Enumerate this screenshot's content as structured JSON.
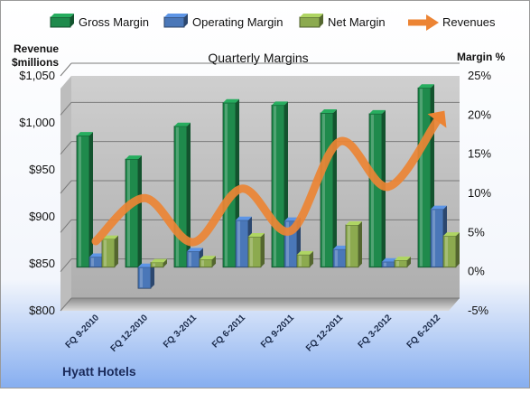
{
  "chart_data": {
    "type": "bar",
    "title": "Quarterly Margins",
    "company": "Hyatt Hotels",
    "left_axis_label": [
      "Revenue",
      "$millions"
    ],
    "right_axis_label": "Margin %",
    "left_ticks": [
      "$800",
      "$850",
      "$900",
      "$950",
      "$1,000",
      "$1,050"
    ],
    "right_ticks": [
      "-5%",
      "0%",
      "5%",
      "10%",
      "15%",
      "20%",
      "25%"
    ],
    "left_axis": {
      "min": 800,
      "max": 1050,
      "step": 50
    },
    "right_axis": {
      "min": -5,
      "max": 25,
      "step": 5
    },
    "grid": true,
    "legend_position": "top",
    "categories": [
      "FQ 9-2010",
      "FQ 12-2010",
      "FQ 3-2011",
      "FQ 6-2011",
      "FQ 9-2011",
      "FQ 12-2011",
      "FQ 3-2012",
      "FQ 6-2012"
    ],
    "series": [
      {
        "name": "Gross Margin",
        "type": "bar",
        "axis": "right",
        "color": "#1f8a4c",
        "values": [
          16.8,
          13.8,
          18.0,
          21.0,
          20.7,
          19.7,
          19.6,
          22.9
        ]
      },
      {
        "name": "Operating Margin",
        "type": "bar",
        "axis": "right",
        "color": "#4a77b8",
        "values": [
          1.3,
          -2.7,
          2.0,
          6.0,
          5.9,
          2.3,
          0.7,
          7.4
        ]
      },
      {
        "name": "Net Margin",
        "type": "bar",
        "axis": "right",
        "color": "#8caa4f",
        "values": [
          3.6,
          0.6,
          1.0,
          3.9,
          1.6,
          5.4,
          0.9,
          4.0
        ]
      },
      {
        "name": "Revenues",
        "type": "line",
        "axis": "left",
        "color": "#ec8434",
        "values": [
          874,
          920,
          873,
          930,
          885,
          980,
          932,
          1002
        ]
      }
    ]
  }
}
